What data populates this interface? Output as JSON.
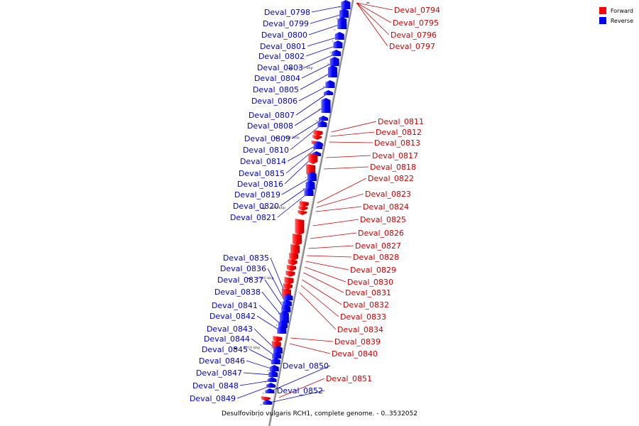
{
  "legend": {
    "items": [
      {
        "label": "Forward",
        "color": "#ff0000"
      },
      {
        "label": "Reverse",
        "color": "#0000ff"
      }
    ]
  },
  "caption": "Desulfovibrio vulgaris RCH1, complete genome. - 0..3532052",
  "colors": {
    "forward": "#ff0000",
    "reverse": "#0000ff",
    "line_forward": "#cc0000",
    "line_reverse": "#0000cc",
    "axis": "#888888"
  },
  "scale": {
    "ticks": [
      {
        "label": "970 kbp",
        "pos": 970
      },
      {
        "label": "980 kbp",
        "pos": 980
      },
      {
        "label": "990 kbp",
        "pos": 990
      },
      {
        "label": "1000 kbp",
        "pos": 1000
      },
      {
        "label": "1010 kbp",
        "pos": 1010
      }
    ]
  },
  "genes": [
    {
      "name": "Deval_0794",
      "strand": "+"
    },
    {
      "name": "Deval_0795",
      "strand": "+"
    },
    {
      "name": "Deval_0796",
      "strand": "+"
    },
    {
      "name": "Deval_0797",
      "strand": "+"
    },
    {
      "name": "Deval_0798",
      "strand": "-"
    },
    {
      "name": "Deval_0799",
      "strand": "-"
    },
    {
      "name": "Deval_0800",
      "strand": "-"
    },
    {
      "name": "Deval_0801",
      "strand": "-"
    },
    {
      "name": "Deval_0802",
      "strand": "-"
    },
    {
      "name": "Deval_0803",
      "strand": "-"
    },
    {
      "name": "Deval_0804",
      "strand": "-"
    },
    {
      "name": "Deval_0805",
      "strand": "-"
    },
    {
      "name": "Deval_0806",
      "strand": "-"
    },
    {
      "name": "Deval_0807",
      "strand": "-"
    },
    {
      "name": "Deval_0808",
      "strand": "-"
    },
    {
      "name": "Deval_0809",
      "strand": "-"
    },
    {
      "name": "Deval_0810",
      "strand": "-"
    },
    {
      "name": "Deval_0811",
      "strand": "+"
    },
    {
      "name": "Deval_0812",
      "strand": "+"
    },
    {
      "name": "Deval_0813",
      "strand": "+"
    },
    {
      "name": "Deval_0814",
      "strand": "-"
    },
    {
      "name": "Deval_0815",
      "strand": "-"
    },
    {
      "name": "Deval_0816",
      "strand": "-"
    },
    {
      "name": "Deval_0817",
      "strand": "+"
    },
    {
      "name": "Deval_0818",
      "strand": "+"
    },
    {
      "name": "Deval_0819",
      "strand": "-"
    },
    {
      "name": "Deval_0820",
      "strand": "-"
    },
    {
      "name": "Deval_0821",
      "strand": "-"
    },
    {
      "name": "Deval_0822",
      "strand": "+"
    },
    {
      "name": "Deval_0823",
      "strand": "+"
    },
    {
      "name": "Deval_0824",
      "strand": "+"
    },
    {
      "name": "Deval_0825",
      "strand": "+"
    },
    {
      "name": "Deval_0826",
      "strand": "+"
    },
    {
      "name": "Deval_0827",
      "strand": "+"
    },
    {
      "name": "Deval_0828",
      "strand": "+"
    },
    {
      "name": "Deval_0829",
      "strand": "+"
    },
    {
      "name": "Deval_0830",
      "strand": "+"
    },
    {
      "name": "Deval_0831",
      "strand": "+"
    },
    {
      "name": "Deval_0832",
      "strand": "+"
    },
    {
      "name": "Deval_0833",
      "strand": "+"
    },
    {
      "name": "Deval_0834",
      "strand": "+"
    },
    {
      "name": "Deval_0835",
      "strand": "-"
    },
    {
      "name": "Deval_0836",
      "strand": "-"
    },
    {
      "name": "Deval_0837",
      "strand": "-"
    },
    {
      "name": "Deval_0838",
      "strand": "-"
    },
    {
      "name": "Deval_0839",
      "strand": "+"
    },
    {
      "name": "Deval_0840",
      "strand": "+"
    },
    {
      "name": "Deval_0841",
      "strand": "-"
    },
    {
      "name": "Deval_0842",
      "strand": "-"
    },
    {
      "name": "Deval_0843",
      "strand": "-"
    },
    {
      "name": "Deval_0844",
      "strand": "-"
    },
    {
      "name": "Deval_0845",
      "strand": "-"
    },
    {
      "name": "Deval_0846",
      "strand": "-"
    },
    {
      "name": "Deval_0847",
      "strand": "-"
    },
    {
      "name": "Deval_0848",
      "strand": "-"
    },
    {
      "name": "Deval_0849",
      "strand": "-"
    },
    {
      "name": "Deval_0850",
      "strand": "-"
    },
    {
      "name": "Deval_0851",
      "strand": "+"
    },
    {
      "name": "Deval_0852",
      "strand": "-"
    }
  ]
}
